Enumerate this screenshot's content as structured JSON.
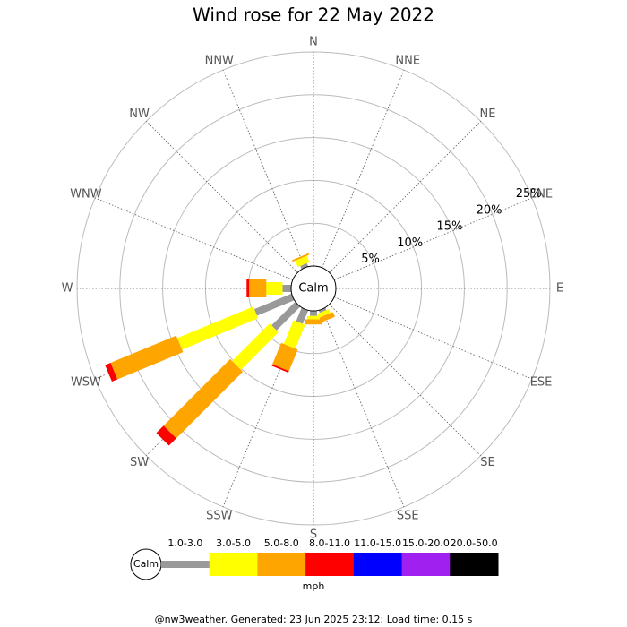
{
  "chart_data": {
    "type": "windrose",
    "title": "Wind rose for 22 May 2022",
    "categories": [
      "N",
      "NNE",
      "NE",
      "ENE",
      "E",
      "ESE",
      "SE",
      "SSE",
      "S",
      "SSW",
      "SW",
      "WSW",
      "W",
      "WNW",
      "NW",
      "NNW"
    ],
    "series": [
      {
        "name": "1.0-3.0",
        "color": "#999999",
        "values": [
          0,
          0,
          0,
          0,
          0,
          0,
          0,
          0.3,
          0.6,
          1.7,
          3.9,
          4.7,
          1.0,
          0,
          0,
          0.4
        ]
      },
      {
        "name": "3.0-5.0",
        "color": "#ffff00",
        "values": [
          0,
          0,
          0,
          0,
          0,
          0,
          0,
          0.5,
          0.4,
          3.0,
          6.2,
          9.6,
          1.9,
          0,
          0,
          0.8
        ]
      },
      {
        "name": "5.0-8.0",
        "color": "#ffa500",
        "values": [
          0,
          0,
          0,
          0,
          0,
          0,
          0,
          0.6,
          0.6,
          2.7,
          11.0,
          8.3,
          2.0,
          0,
          0,
          0.2
        ]
      },
      {
        "name": "8.0-11.0",
        "color": "#ff0000",
        "values": [
          0,
          0,
          0,
          0,
          0,
          0,
          0,
          0,
          0,
          0.2,
          1.2,
          0.7,
          0.3,
          0,
          0,
          0
        ]
      },
      {
        "name": "11.0-15.0",
        "color": "#0000ff",
        "values": [
          0,
          0,
          0,
          0,
          0,
          0,
          0,
          0,
          0,
          0,
          0,
          0,
          0,
          0,
          0,
          0
        ]
      },
      {
        "name": "15.0-20.0",
        "color": "#a020f0",
        "values": [
          0,
          0,
          0,
          0,
          0,
          0,
          0,
          0,
          0,
          0,
          0,
          0,
          0,
          0,
          0,
          0
        ]
      },
      {
        "name": "20.0-50.0",
        "color": "#000000",
        "values": [
          0,
          0,
          0,
          0,
          0,
          0,
          0,
          0,
          0,
          0,
          0,
          0,
          0,
          0,
          0,
          0
        ]
      }
    ],
    "rlim": [
      0,
      25
    ],
    "rticks": [
      {
        "value": 5,
        "label": "5%"
      },
      {
        "value": 10,
        "label": "10%"
      },
      {
        "value": 15,
        "label": "15%"
      },
      {
        "value": 20,
        "label": "20%"
      },
      {
        "value": 25,
        "label": "25%"
      }
    ],
    "calm_label": "Calm",
    "unit": "mph",
    "footer": "@nw3weather. Generated: 23 Jun 2025 23:12; Load time: 0.15 s"
  }
}
